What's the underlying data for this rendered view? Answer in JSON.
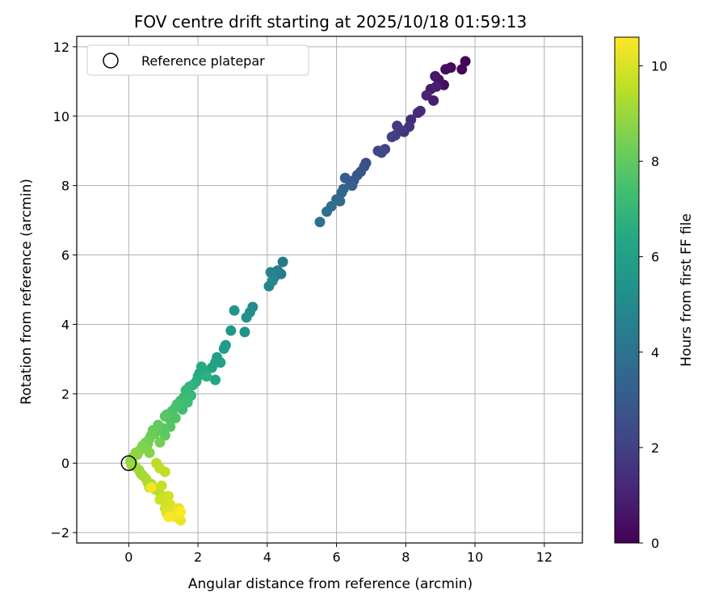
{
  "chart_data": {
    "type": "scatter",
    "title": "FOV centre drift starting at 2025/10/18 01:59:13",
    "xlabel": "Angular distance from reference (arcmin)",
    "ylabel": "Rotation from reference (arcmin)",
    "xlim": [
      -1.5,
      13.1
    ],
    "ylim": [
      -2.3,
      12.3
    ],
    "xticks": [
      0,
      2,
      4,
      6,
      8,
      10,
      12
    ],
    "yticks": [
      -2,
      0,
      2,
      4,
      6,
      8,
      10,
      12
    ],
    "grid": true,
    "legend": {
      "placement": "top-left",
      "entries": [
        "Reference platepar"
      ]
    },
    "colorbar": {
      "label": "Hours from first FF file",
      "colormap": "viridis",
      "range": [
        0,
        10.6
      ],
      "ticks": [
        0,
        2,
        4,
        6,
        8,
        10
      ]
    },
    "reference_point": {
      "name": "Reference platepar",
      "x": 0,
      "y": 0
    },
    "points": [
      [
        9.72,
        11.58,
        0.05
      ],
      [
        9.62,
        11.35,
        0.15
      ],
      [
        9.3,
        11.4,
        0.25
      ],
      [
        9.15,
        11.35,
        0.35
      ],
      [
        9.1,
        10.9,
        0.45
      ],
      [
        8.95,
        11.05,
        0.55
      ],
      [
        8.85,
        11.15,
        0.65
      ],
      [
        8.72,
        10.78,
        0.75
      ],
      [
        8.8,
        10.45,
        0.85
      ],
      [
        8.88,
        10.85,
        0.95
      ],
      [
        8.6,
        10.6,
        1.05
      ],
      [
        8.42,
        10.15,
        1.2
      ],
      [
        8.35,
        10.1,
        1.3
      ],
      [
        8.15,
        9.9,
        1.4
      ],
      [
        8.1,
        9.7,
        1.5
      ],
      [
        7.95,
        9.55,
        1.6
      ],
      [
        7.85,
        9.6,
        1.7
      ],
      [
        7.75,
        9.72,
        1.8
      ],
      [
        7.7,
        9.45,
        1.9
      ],
      [
        7.6,
        9.4,
        2.0
      ],
      [
        7.4,
        9.05,
        2.1
      ],
      [
        7.2,
        9.0,
        2.2
      ],
      [
        7.3,
        8.95,
        2.3
      ],
      [
        6.85,
        8.65,
        2.5
      ],
      [
        6.8,
        8.55,
        2.6
      ],
      [
        6.7,
        8.4,
        2.7
      ],
      [
        6.6,
        8.3,
        2.8
      ],
      [
        6.5,
        8.15,
        2.9
      ],
      [
        6.4,
        8.1,
        3.0
      ],
      [
        6.25,
        8.22,
        3.1
      ],
      [
        6.45,
        8.0,
        3.2
      ],
      [
        6.2,
        7.9,
        3.4
      ],
      [
        6.15,
        7.8,
        3.5
      ],
      [
        6.1,
        7.55,
        3.6
      ],
      [
        6.0,
        7.6,
        3.7
      ],
      [
        5.85,
        7.4,
        3.8
      ],
      [
        5.72,
        7.25,
        3.9
      ],
      [
        5.52,
        6.95,
        4.0
      ],
      [
        4.45,
        5.8,
        4.3
      ],
      [
        4.4,
        5.45,
        4.4
      ],
      [
        4.3,
        5.55,
        4.5
      ],
      [
        4.2,
        5.35,
        4.6
      ],
      [
        4.1,
        5.5,
        4.7
      ],
      [
        4.05,
        5.1,
        4.8
      ],
      [
        4.15,
        5.25,
        4.9
      ],
      [
        3.58,
        4.5,
        5.1
      ],
      [
        3.5,
        4.35,
        5.2
      ],
      [
        3.4,
        4.2,
        5.3
      ],
      [
        3.35,
        3.78,
        5.4
      ],
      [
        3.05,
        4.4,
        5.5
      ],
      [
        2.95,
        3.82,
        5.6
      ],
      [
        2.8,
        3.4,
        5.7
      ],
      [
        2.75,
        3.3,
        5.8
      ],
      [
        2.55,
        3.05,
        5.9
      ],
      [
        2.5,
        2.9,
        6.0
      ],
      [
        2.65,
        2.9,
        6.05
      ],
      [
        2.4,
        2.75,
        6.1
      ],
      [
        2.5,
        2.4,
        6.2
      ],
      [
        2.2,
        2.65,
        6.3
      ],
      [
        2.05,
        2.6,
        6.4
      ],
      [
        2.1,
        2.78,
        6.45
      ],
      [
        2.0,
        2.5,
        6.5
      ],
      [
        1.95,
        2.35,
        6.6
      ],
      [
        2.25,
        2.5,
        6.7
      ],
      [
        1.85,
        2.25,
        6.8
      ],
      [
        1.75,
        2.2,
        6.9
      ],
      [
        1.65,
        2.1,
        7.0
      ],
      [
        1.8,
        1.95,
        7.05
      ],
      [
        1.6,
        1.9,
        7.1
      ],
      [
        1.5,
        1.8,
        7.2
      ],
      [
        1.7,
        1.75,
        7.25
      ],
      [
        1.55,
        1.55,
        7.3
      ],
      [
        1.4,
        1.7,
        7.4
      ],
      [
        1.35,
        1.6,
        7.5
      ],
      [
        1.25,
        1.5,
        7.55
      ],
      [
        1.2,
        1.25,
        7.6
      ],
      [
        1.35,
        1.3,
        7.65
      ],
      [
        1.1,
        1.4,
        7.7
      ],
      [
        1.05,
        1.35,
        7.75
      ],
      [
        1.2,
        1.05,
        7.8
      ],
      [
        1.0,
        1.0,
        7.85
      ],
      [
        0.9,
        0.95,
        7.9
      ],
      [
        1.05,
        0.8,
        7.95
      ],
      [
        0.85,
        1.1,
        8.0
      ],
      [
        0.8,
        0.9,
        8.05
      ],
      [
        0.75,
        0.85,
        8.1
      ],
      [
        0.7,
        0.95,
        8.15
      ],
      [
        0.65,
        0.8,
        8.2
      ],
      [
        0.6,
        0.7,
        8.25
      ],
      [
        0.9,
        0.6,
        8.3
      ],
      [
        0.55,
        0.55,
        8.35
      ],
      [
        0.5,
        0.6,
        8.4
      ],
      [
        0.45,
        0.45,
        8.45
      ],
      [
        0.4,
        0.5,
        8.5
      ],
      [
        0.35,
        0.4,
        8.55
      ],
      [
        0.3,
        0.35,
        8.6
      ],
      [
        0.6,
        0.3,
        8.65
      ],
      [
        0.25,
        0.25,
        8.7
      ],
      [
        0.2,
        0.3,
        8.75
      ],
      [
        0.15,
        0.2,
        8.8
      ],
      [
        0.1,
        0.1,
        8.85
      ],
      [
        0.05,
        0.05,
        8.9
      ],
      [
        0.08,
        -0.05,
        8.95
      ],
      [
        0.2,
        -0.1,
        9.0
      ],
      [
        0.3,
        -0.2,
        9.05
      ],
      [
        0.35,
        -0.3,
        9.1
      ],
      [
        0.4,
        -0.35,
        9.15
      ],
      [
        0.5,
        -0.45,
        9.2
      ],
      [
        0.55,
        -0.55,
        9.25
      ],
      [
        0.65,
        -0.6,
        9.3
      ],
      [
        0.6,
        -0.7,
        9.35
      ],
      [
        0.75,
        -0.75,
        9.4
      ],
      [
        0.85,
        -0.8,
        9.45
      ],
      [
        0.8,
        0.0,
        9.5
      ],
      [
        0.9,
        -0.15,
        9.55
      ],
      [
        1.05,
        -0.25,
        9.6
      ],
      [
        0.95,
        -0.65,
        9.65
      ],
      [
        1.0,
        -0.95,
        9.7
      ],
      [
        0.9,
        -1.05,
        9.75
      ],
      [
        1.1,
        -1.1,
        9.8
      ],
      [
        1.15,
        -0.95,
        9.85
      ],
      [
        1.05,
        -1.3,
        9.9
      ],
      [
        1.2,
        -1.2,
        9.95
      ],
      [
        1.1,
        -1.45,
        10.0
      ],
      [
        1.3,
        -1.35,
        10.05
      ],
      [
        1.25,
        -1.5,
        10.1
      ],
      [
        1.4,
        -1.45,
        10.2
      ],
      [
        1.45,
        -1.3,
        10.25
      ],
      [
        1.5,
        -1.65,
        10.3
      ],
      [
        1.35,
        -1.55,
        10.4
      ],
      [
        0.65,
        -0.7,
        10.45
      ],
      [
        1.15,
        -1.55,
        10.55
      ],
      [
        1.5,
        -1.4,
        10.6
      ]
    ]
  }
}
